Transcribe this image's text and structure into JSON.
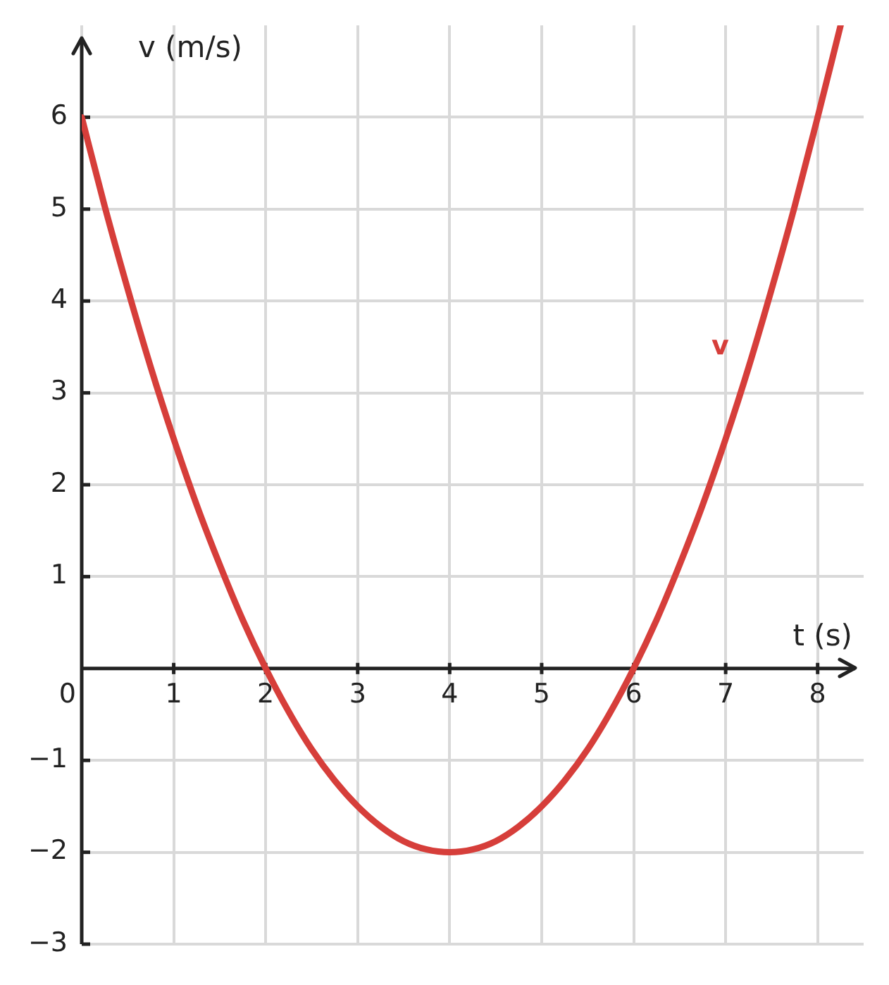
{
  "chart_data": {
    "type": "line",
    "xlabel": "t (s)",
    "ylabel": "v (m/s)",
    "x": [
      0,
      0.25,
      0.5,
      0.75,
      1,
      1.25,
      1.5,
      1.75,
      2,
      2.25,
      2.5,
      2.75,
      3,
      3.25,
      3.5,
      3.75,
      4,
      4.25,
      4.5,
      4.75,
      5,
      5.25,
      5.5,
      5.75,
      6,
      6.25,
      6.5,
      6.75,
      7,
      7.25,
      7.5,
      7.75,
      8,
      8.25
    ],
    "series": [
      {
        "name": "v",
        "color": "#d63e3a",
        "values": [
          6,
          5.03,
          4.13,
          3.28,
          2.5,
          1.78,
          1.13,
          0.53,
          0,
          -0.47,
          -0.88,
          -1.22,
          -1.5,
          -1.72,
          -1.88,
          -1.97,
          -2,
          -1.97,
          -1.88,
          -1.72,
          -1.5,
          -1.22,
          -0.88,
          -0.47,
          0,
          0.53,
          1.13,
          1.78,
          2.5,
          3.28,
          4.13,
          5.03,
          6,
          7
        ]
      }
    ],
    "xlim": [
      0,
      8.5
    ],
    "ylim": [
      -3,
      7
    ],
    "xticks": [
      0,
      1,
      2,
      3,
      4,
      5,
      6,
      7,
      8
    ],
    "yticks": [
      -3,
      -2,
      -1,
      1,
      2,
      3,
      4,
      5,
      6
    ],
    "grid": true,
    "legend": false,
    "marker": "none",
    "line_style": "solid"
  }
}
